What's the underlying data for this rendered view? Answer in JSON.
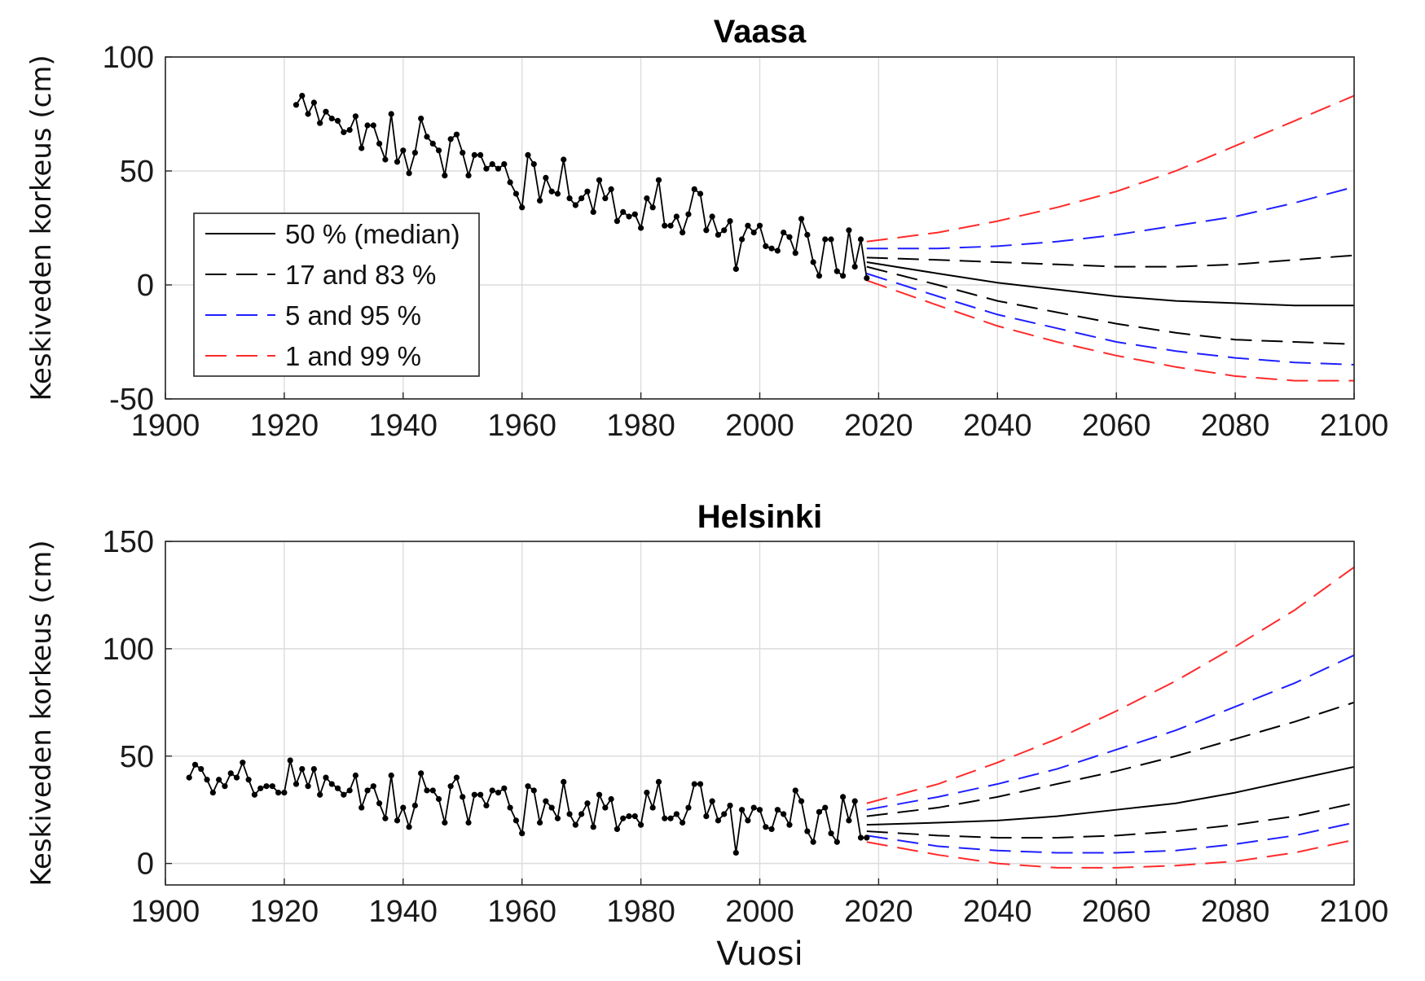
{
  "xlabel": "Vuosi",
  "chart_data": [
    {
      "type": "line",
      "title": "Vaasa",
      "ylabel": "Keskiveden korkeus (cm)",
      "xlabel": "",
      "xlim": [
        1900,
        2100
      ],
      "ylim": [
        -50,
        100
      ],
      "xticks": [
        1900,
        1920,
        1940,
        1960,
        1980,
        2000,
        2020,
        2040,
        2060,
        2080,
        2100
      ],
      "yticks": [
        -50,
        0,
        50,
        100
      ],
      "grid": true,
      "legend_position": "middle-left",
      "legend": [
        {
          "label": "50 % (median)",
          "color": "#000000",
          "style": "solid"
        },
        {
          "label": "17 and 83 %",
          "color": "#000000",
          "style": "dashed"
        },
        {
          "label": "5 and 95 %",
          "color": "#1f1fff",
          "style": "dashed"
        },
        {
          "label": "1 and 99 %",
          "color": "#ff2a2a",
          "style": "dashed"
        }
      ],
      "observed": {
        "x": [
          1922,
          1923,
          1924,
          1925,
          1926,
          1927,
          1928,
          1929,
          1930,
          1931,
          1932,
          1933,
          1934,
          1935,
          1936,
          1937,
          1938,
          1939,
          1940,
          1941,
          1942,
          1943,
          1944,
          1945,
          1946,
          1947,
          1948,
          1949,
          1950,
          1951,
          1952,
          1953,
          1954,
          1955,
          1956,
          1957,
          1958,
          1959,
          1960,
          1961,
          1962,
          1963,
          1964,
          1965,
          1966,
          1967,
          1968,
          1969,
          1970,
          1971,
          1972,
          1973,
          1974,
          1975,
          1976,
          1977,
          1978,
          1979,
          1980,
          1981,
          1982,
          1983,
          1984,
          1985,
          1986,
          1987,
          1988,
          1989,
          1990,
          1991,
          1992,
          1993,
          1994,
          1995,
          1996,
          1997,
          1998,
          1999,
          2000,
          2001,
          2002,
          2003,
          2004,
          2005,
          2006,
          2007,
          2008,
          2009,
          2010,
          2011,
          2012,
          2013,
          2014,
          2015,
          2016,
          2017,
          2018
        ],
        "y": [
          79,
          83,
          75,
          80,
          71,
          76,
          73,
          72,
          67,
          68,
          74,
          60,
          70,
          70,
          62,
          55,
          75,
          54,
          59,
          49,
          58,
          73,
          65,
          62,
          59,
          48,
          64,
          66,
          58,
          48,
          57,
          57,
          51,
          53,
          51,
          53,
          45,
          40,
          34,
          57,
          53,
          37,
          47,
          41,
          40,
          55,
          38,
          35,
          38,
          41,
          32,
          46,
          38,
          42,
          28,
          32,
          30,
          31,
          25,
          38,
          34,
          46,
          26,
          26,
          30,
          23,
          31,
          42,
          40,
          24,
          30,
          22,
          24,
          28,
          7,
          20,
          26,
          23,
          26,
          17,
          16,
          15,
          23,
          21,
          14,
          29,
          22,
          10,
          4,
          20,
          20,
          6,
          4,
          24,
          8,
          20,
          3
        ]
      },
      "projections": [
        {
          "name": "50 %",
          "color": "#000000",
          "style": "solid",
          "x": [
            2018,
            2030,
            2040,
            2050,
            2060,
            2070,
            2080,
            2090,
            2100
          ],
          "y": [
            10,
            5,
            1,
            -2,
            -5,
            -7,
            -8,
            -9,
            -9
          ]
        },
        {
          "name": "83 %",
          "color": "#000000",
          "style": "dashed",
          "x": [
            2018,
            2030,
            2040,
            2050,
            2060,
            2070,
            2080,
            2090,
            2100
          ],
          "y": [
            12,
            11,
            10,
            9,
            8,
            8,
            9,
            11,
            13
          ]
        },
        {
          "name": "17 %",
          "color": "#000000",
          "style": "dashed",
          "x": [
            2018,
            2030,
            2040,
            2050,
            2060,
            2070,
            2080,
            2090,
            2100
          ],
          "y": [
            8,
            0,
            -7,
            -12,
            -17,
            -21,
            -24,
            -25,
            -26
          ]
        },
        {
          "name": "95 %",
          "color": "#1f1fff",
          "style": "dashed",
          "x": [
            2018,
            2030,
            2040,
            2050,
            2060,
            2070,
            2080,
            2090,
            2100
          ],
          "y": [
            16,
            16,
            17,
            19,
            22,
            26,
            30,
            36,
            43
          ]
        },
        {
          "name": "5 %",
          "color": "#1f1fff",
          "style": "dashed",
          "x": [
            2018,
            2030,
            2040,
            2050,
            2060,
            2070,
            2080,
            2090,
            2100
          ],
          "y": [
            5,
            -5,
            -13,
            -19,
            -25,
            -29,
            -32,
            -34,
            -35
          ]
        },
        {
          "name": "99 %",
          "color": "#ff2a2a",
          "style": "dashed",
          "x": [
            2018,
            2030,
            2040,
            2050,
            2060,
            2070,
            2080,
            2090,
            2100
          ],
          "y": [
            19,
            23,
            28,
            34,
            41,
            50,
            61,
            72,
            83
          ]
        },
        {
          "name": "1 %",
          "color": "#ff2a2a",
          "style": "dashed",
          "x": [
            2018,
            2030,
            2040,
            2050,
            2060,
            2070,
            2080,
            2090,
            2100
          ],
          "y": [
            2,
            -9,
            -18,
            -25,
            -31,
            -36,
            -40,
            -42,
            -42
          ]
        }
      ]
    },
    {
      "type": "line",
      "title": "Helsinki",
      "ylabel": "Keskiveden korkeus (cm)",
      "xlabel": "Vuosi",
      "xlim": [
        1900,
        2100
      ],
      "ylim": [
        -10,
        150
      ],
      "xticks": [
        1900,
        1920,
        1940,
        1960,
        1980,
        2000,
        2020,
        2040,
        2060,
        2080,
        2100
      ],
      "yticks": [
        0,
        50,
        100,
        150
      ],
      "grid": true,
      "observed": {
        "x": [
          1904,
          1905,
          1906,
          1907,
          1908,
          1909,
          1910,
          1911,
          1912,
          1913,
          1914,
          1915,
          1916,
          1917,
          1918,
          1919,
          1920,
          1921,
          1922,
          1923,
          1924,
          1925,
          1926,
          1927,
          1928,
          1929,
          1930,
          1931,
          1932,
          1933,
          1934,
          1935,
          1936,
          1937,
          1938,
          1939,
          1940,
          1941,
          1942,
          1943,
          1944,
          1945,
          1946,
          1947,
          1948,
          1949,
          1950,
          1951,
          1952,
          1953,
          1954,
          1955,
          1956,
          1957,
          1958,
          1959,
          1960,
          1961,
          1962,
          1963,
          1964,
          1965,
          1966,
          1967,
          1968,
          1969,
          1970,
          1971,
          1972,
          1973,
          1974,
          1975,
          1976,
          1977,
          1978,
          1979,
          1980,
          1981,
          1982,
          1983,
          1984,
          1985,
          1986,
          1987,
          1988,
          1989,
          1990,
          1991,
          1992,
          1993,
          1994,
          1995,
          1996,
          1997,
          1998,
          1999,
          2000,
          2001,
          2002,
          2003,
          2004,
          2005,
          2006,
          2007,
          2008,
          2009,
          2010,
          2011,
          2012,
          2013,
          2014,
          2015,
          2016,
          2017,
          2018
        ],
        "y": [
          40,
          46,
          44,
          39,
          33,
          39,
          36,
          42,
          40,
          47,
          39,
          32,
          35,
          36,
          36,
          33,
          33,
          48,
          37,
          44,
          36,
          44,
          32,
          40,
          37,
          35,
          32,
          34,
          41,
          26,
          34,
          36,
          28,
          21,
          41,
          20,
          26,
          17,
          27,
          42,
          34,
          34,
          30,
          19,
          36,
          40,
          31,
          19,
          32,
          32,
          27,
          34,
          33,
          35,
          26,
          20,
          14,
          36,
          34,
          19,
          29,
          26,
          21,
          38,
          23,
          18,
          23,
          28,
          17,
          32,
          26,
          30,
          16,
          21,
          22,
          22,
          18,
          33,
          26,
          38,
          21,
          21,
          23,
          19,
          26,
          37,
          37,
          22,
          29,
          20,
          23,
          27,
          5,
          25,
          20,
          26,
          25,
          17,
          16,
          25,
          23,
          18,
          34,
          29,
          15,
          10,
          24,
          26,
          14,
          10,
          31,
          20,
          29,
          12,
          12
        ]
      },
      "projections": [
        {
          "name": "50 %",
          "color": "#000000",
          "style": "solid",
          "x": [
            2018,
            2030,
            2040,
            2050,
            2060,
            2070,
            2080,
            2090,
            2100
          ],
          "y": [
            18,
            19,
            20,
            22,
            25,
            28,
            33,
            39,
            45
          ]
        },
        {
          "name": "83 %",
          "color": "#000000",
          "style": "dashed",
          "x": [
            2018,
            2030,
            2040,
            2050,
            2060,
            2070,
            2080,
            2090,
            2100
          ],
          "y": [
            22,
            26,
            31,
            37,
            43,
            50,
            58,
            66,
            75
          ]
        },
        {
          "name": "17 %",
          "color": "#000000",
          "style": "dashed",
          "x": [
            2018,
            2030,
            2040,
            2050,
            2060,
            2070,
            2080,
            2090,
            2100
          ],
          "y": [
            15,
            13,
            12,
            12,
            13,
            15,
            18,
            22,
            28
          ]
        },
        {
          "name": "95 %",
          "color": "#1f1fff",
          "style": "dashed",
          "x": [
            2018,
            2030,
            2040,
            2050,
            2060,
            2070,
            2080,
            2090,
            2100
          ],
          "y": [
            25,
            31,
            37,
            44,
            53,
            62,
            73,
            84,
            97
          ]
        },
        {
          "name": "5 %",
          "color": "#1f1fff",
          "style": "dashed",
          "x": [
            2018,
            2030,
            2040,
            2050,
            2060,
            2070,
            2080,
            2090,
            2100
          ],
          "y": [
            13,
            8,
            6,
            5,
            5,
            6,
            9,
            13,
            19
          ]
        },
        {
          "name": "99 %",
          "color": "#ff2a2a",
          "style": "dashed",
          "x": [
            2018,
            2030,
            2040,
            2050,
            2060,
            2070,
            2080,
            2090,
            2100
          ],
          "y": [
            28,
            37,
            47,
            58,
            71,
            85,
            101,
            118,
            138
          ]
        },
        {
          "name": "1 %",
          "color": "#ff2a2a",
          "style": "dashed",
          "x": [
            2018,
            2030,
            2040,
            2050,
            2060,
            2070,
            2080,
            2090,
            2100
          ],
          "y": [
            10,
            4,
            0,
            -2,
            -2,
            -1,
            1,
            5,
            11
          ]
        }
      ]
    }
  ]
}
